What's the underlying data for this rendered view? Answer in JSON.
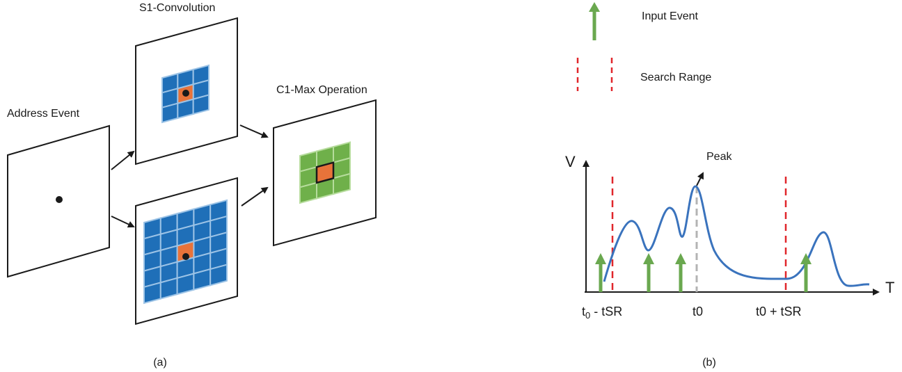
{
  "panel_a": {
    "caption": "(a)",
    "address_event_label": "Address Event",
    "s1_label": "S1-Convolution",
    "c1_label": "C1-Max Operation",
    "colors": {
      "s1_cell": "#1f6fb8",
      "s1_grid_line": "#9cc3e6",
      "c1_cell": "#6fb04a",
      "c1_grid_line": "#b6dc9c",
      "center_cell": "#e8733a",
      "frame": "#1a1a1a"
    }
  },
  "panel_b": {
    "caption": "(b)",
    "legend": {
      "input_event_label": "Input Event",
      "search_range_label": "Search Range"
    },
    "y_axis_label": "V",
    "x_axis_label": "T",
    "peak_label": "Peak",
    "tick_labels": {
      "left": {
        "base": "t",
        "sub": "0",
        "rest": " - tSR"
      },
      "center": "t0",
      "right": {
        "base": "t0 + t",
        "rest": "SR"
      }
    },
    "colors": {
      "curve": "#3a73bd",
      "input_event": "#6aa84f",
      "search_range": "#e0262b",
      "peak_marker": "#b3b3b3"
    }
  }
}
